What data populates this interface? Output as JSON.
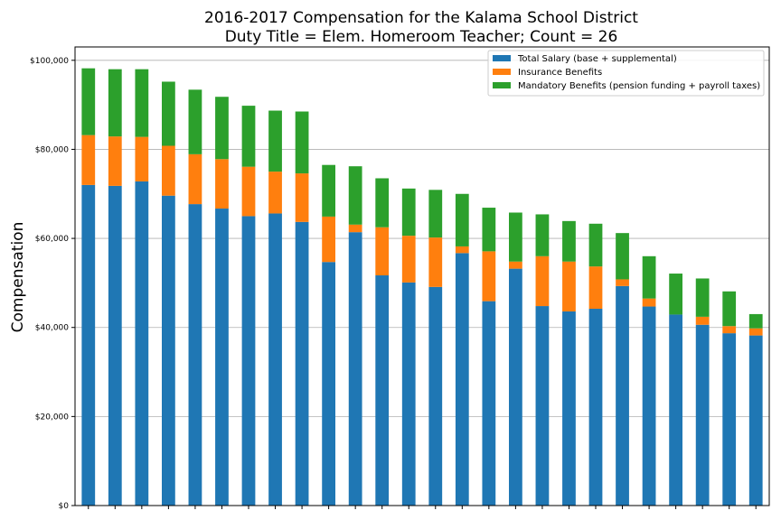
{
  "chart_data": {
    "type": "bar",
    "stacked": true,
    "title_line1": "2016-2017 Compensation for the Kalama School District",
    "title_line2": "Duty Title = Elem. Homeroom Teacher; Count = 26",
    "xlabel": "",
    "ylabel": "Compensation",
    "ylim": [
      0,
      103000
    ],
    "yticks": [
      0,
      20000,
      40000,
      60000,
      80000,
      100000
    ],
    "ytick_labels": [
      "$0",
      "$20,000",
      "$40,000",
      "$60,000",
      "$80,000",
      "$100,000"
    ],
    "grid": "y",
    "legend_position": "top-right",
    "categories": [
      "",
      "",
      "",
      "",
      "",
      "",
      "",
      "",
      "",
      "",
      "",
      "",
      "",
      "",
      "",
      "",
      "",
      "",
      "",
      "",
      "",
      "",
      "",
      "",
      "",
      ""
    ],
    "series": [
      {
        "name": "Total Salary (base + supplemental)",
        "color": "#1f77b4",
        "values": [
          72000,
          71800,
          72800,
          69600,
          67700,
          66700,
          65000,
          65600,
          63700,
          54700,
          61400,
          51700,
          50100,
          49100,
          56700,
          45900,
          53200,
          44800,
          43600,
          44200,
          49300,
          44700,
          42900,
          40600,
          38700,
          38200
        ]
      },
      {
        "name": "Insurance Benefits",
        "color": "#ff7f0e",
        "values": [
          11200,
          11100,
          10000,
          11200,
          11200,
          11100,
          11100,
          9400,
          10900,
          10200,
          1700,
          10800,
          10500,
          11100,
          1500,
          11200,
          1600,
          11200,
          11200,
          9500,
          1500,
          1800,
          0,
          1800,
          1600,
          1600
        ]
      },
      {
        "name": "Mandatory Benefits (pension funding + payroll taxes)",
        "color": "#2ca02c",
        "values": [
          15000,
          15100,
          15200,
          14400,
          14500,
          14000,
          13700,
          13700,
          13900,
          11600,
          13100,
          11000,
          10600,
          10700,
          11800,
          9800,
          11000,
          9400,
          9100,
          9600,
          10400,
          9500,
          9200,
          8600,
          7800,
          3200
        ]
      }
    ]
  }
}
